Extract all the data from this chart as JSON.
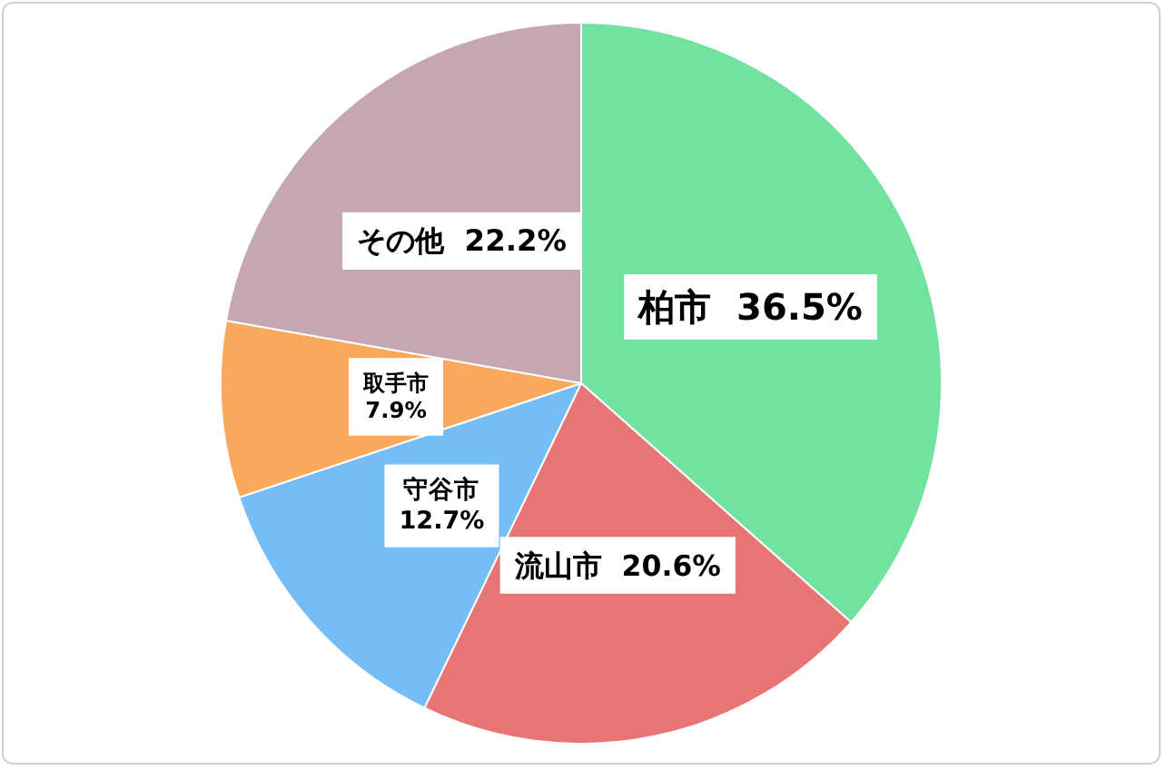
{
  "chart_data": {
    "type": "pie",
    "categories": [
      "柏市",
      "流山市",
      "守谷市",
      "取手市",
      "その他"
    ],
    "values": [
      36.5,
      20.6,
      12.7,
      7.9,
      22.2
    ],
    "colors": [
      "#72e2a0",
      "#e87575",
      "#75bdf7",
      "#f9a95c",
      "#c4a7b1"
    ],
    "value_labels": [
      "36.5%",
      "20.6%",
      "12.7%",
      "7.9%",
      "22.2%"
    ],
    "legend": false
  }
}
